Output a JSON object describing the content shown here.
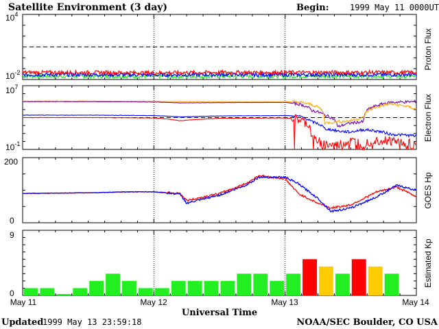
{
  "header": {
    "title": "Satellite Environment (3 day)",
    "begin_label": "Begin:",
    "begin_value": "1999 May 11 0000UT"
  },
  "footer": {
    "updated_label": "Updated",
    "updated_value": "1999 May 13 23:59:18",
    "credit": "NOAA/SEC Boulder, CO USA"
  },
  "x_axis": {
    "label": "Universal Time",
    "ticks": [
      "May 11",
      "May 12",
      "May 13",
      "May 14"
    ],
    "range_days": [
      0,
      3
    ]
  },
  "colors": {
    "red": "#ff0000",
    "blue": "#0000ff",
    "green": "#22ee22",
    "purple": "#7700aa",
    "orange": "#ffaa00",
    "yellow": "#ffcc00",
    "black": "#000000"
  },
  "panels": {
    "proton": {
      "ylabel": "Proton Flux",
      "ymax_label": "10",
      "ymax_exp": "4",
      "ymin_label": "10",
      "ymin_exp": "-2"
    },
    "electron": {
      "ylabel": "Electron Flux",
      "ymax_label": "10",
      "ymax_exp": "7",
      "ymin_label": "10",
      "ymin_exp": "-1"
    },
    "hp": {
      "ylabel": "GOES Hp",
      "ymax_label": "200",
      "ymin_label": "0"
    },
    "kp": {
      "ylabel": "Estimated Kp",
      "ymax_label": "9",
      "ymin_label": "0"
    }
  },
  "chart_data": [
    {
      "type": "line",
      "id": "proton",
      "ylabel": "Proton Flux",
      "yscale": "log",
      "ylim": [
        0.01,
        10000
      ],
      "threshold": 10,
      "x": [
        0,
        0.5,
        1.0,
        1.5,
        2.0,
        2.5,
        3.0
      ],
      "series": [
        {
          "color": "red",
          "values": [
            0.045,
            0.045,
            0.042,
            0.045,
            0.045,
            0.045,
            0.045
          ]
        },
        {
          "color": "blue",
          "values": [
            0.028,
            0.028,
            0.027,
            0.028,
            0.028,
            0.028,
            0.028
          ]
        },
        {
          "color": "green",
          "values": [
            0.02,
            0.02,
            0.019,
            0.02,
            0.02,
            0.02,
            0.02
          ]
        }
      ]
    },
    {
      "type": "line",
      "id": "electron",
      "ylabel": "Electron Flux",
      "yscale": "log",
      "ylim": [
        0.1,
        10000000
      ],
      "threshold": 1000,
      "x": [
        0,
        0.5,
        1.0,
        1.2,
        1.5,
        2.0,
        2.1,
        2.2,
        2.3,
        2.4,
        2.5,
        2.6,
        2.7,
        2.8,
        3.0
      ],
      "series": [
        {
          "color": "purple",
          "values": [
            100000,
            100000,
            90000,
            70000,
            75000,
            80000,
            50000,
            8000,
            2000,
            60,
            200,
            300,
            30000,
            80000,
            100000
          ]
        },
        {
          "color": "orange",
          "values": [
            120000,
            120000,
            110000,
            100000,
            100000,
            100000,
            90000,
            40000,
            200,
            300,
            400,
            1000,
            20000,
            50000,
            10000
          ]
        },
        {
          "color": "blue",
          "values": [
            2000,
            2000,
            1800,
            1200,
            1600,
            1800,
            1500,
            300,
            40,
            20,
            15,
            30,
            20,
            8,
            5
          ]
        },
        {
          "color": "red",
          "values": [
            1000,
            1000,
            900,
            400,
            800,
            900,
            500,
            2,
            0.4,
            0.3,
            1,
            0.6,
            1.5,
            1.2,
            0.4
          ]
        }
      ]
    },
    {
      "type": "line",
      "id": "hp",
      "ylabel": "GOES Hp",
      "ylim": [
        0,
        200
      ],
      "x": [
        0,
        0.5,
        0.8,
        1.0,
        1.2,
        1.25,
        1.5,
        1.7,
        1.8,
        2.0,
        2.1,
        2.25,
        2.35,
        2.5,
        2.7,
        2.85,
        3.0
      ],
      "series": [
        {
          "color": "red",
          "values": [
            90,
            92,
            95,
            95,
            90,
            68,
            90,
            120,
            145,
            135,
            90,
            60,
            45,
            55,
            95,
            110,
            80
          ]
        },
        {
          "color": "blue",
          "values": [
            90,
            92,
            95,
            95,
            88,
            60,
            85,
            115,
            140,
            140,
            120,
            75,
            35,
            45,
            80,
            115,
            100
          ]
        }
      ]
    },
    {
      "type": "bar",
      "id": "kp",
      "ylabel": "Estimated Kp",
      "ylim": [
        0,
        9
      ],
      "bar_width_hours": 3,
      "values": [
        1,
        1,
        0,
        1,
        2,
        3,
        2,
        1,
        1,
        2,
        2,
        2,
        2,
        3,
        3,
        2,
        3,
        5,
        4,
        3,
        5,
        4,
        3
      ],
      "colors": [
        "green",
        "green",
        "green",
        "green",
        "green",
        "green",
        "green",
        "green",
        "green",
        "green",
        "green",
        "green",
        "green",
        "green",
        "green",
        "green",
        "green",
        "red",
        "yellow",
        "green",
        "red",
        "yellow",
        "green"
      ]
    }
  ]
}
